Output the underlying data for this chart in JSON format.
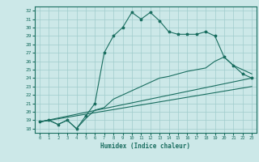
{
  "xlabel": "Humidex (Indice chaleur)",
  "bg_color": "#cce8e8",
  "grid_color": "#a0cccc",
  "line_color": "#1a6e60",
  "xlim": [
    -0.5,
    23.5
  ],
  "ylim": [
    17.5,
    32.5
  ],
  "yticks": [
    18,
    19,
    20,
    21,
    22,
    23,
    24,
    25,
    26,
    27,
    28,
    29,
    30,
    31,
    32
  ],
  "xticks": [
    0,
    1,
    2,
    3,
    4,
    5,
    6,
    7,
    8,
    9,
    10,
    11,
    12,
    13,
    14,
    15,
    16,
    17,
    18,
    19,
    20,
    21,
    22,
    23
  ],
  "lines": [
    {
      "x": [
        0,
        1,
        2,
        3,
        4,
        5,
        6,
        7,
        8,
        9,
        10,
        11,
        12,
        13,
        14,
        15,
        16,
        17,
        18,
        19,
        20,
        21,
        22,
        23
      ],
      "y": [
        18.8,
        19.0,
        18.5,
        19.0,
        18.0,
        19.5,
        21.0,
        27.0,
        29.0,
        30.0,
        31.8,
        31.0,
        31.8,
        30.8,
        29.5,
        29.2,
        29.2,
        29.2,
        29.5,
        29.0,
        26.5,
        25.5,
        24.5,
        24.0
      ],
      "marker": "*",
      "ms": 2.5
    },
    {
      "x": [
        0,
        1,
        2,
        3,
        4,
        5,
        6,
        7,
        8,
        9,
        10,
        11,
        12,
        13,
        14,
        15,
        16,
        17,
        18,
        19,
        20,
        21,
        22,
        23
      ],
      "y": [
        18.8,
        19.0,
        18.5,
        19.0,
        18.0,
        19.2,
        20.2,
        20.5,
        21.5,
        22.0,
        22.5,
        23.0,
        23.5,
        24.0,
        24.2,
        24.5,
        24.8,
        25.0,
        25.2,
        26.0,
        26.5,
        25.5,
        25.0,
        24.5
      ],
      "marker": null,
      "ms": 0
    },
    {
      "x": [
        0,
        23
      ],
      "y": [
        18.8,
        23.0
      ],
      "marker": null,
      "ms": 0
    },
    {
      "x": [
        0,
        23
      ],
      "y": [
        18.8,
        24.0
      ],
      "marker": null,
      "ms": 0
    }
  ]
}
